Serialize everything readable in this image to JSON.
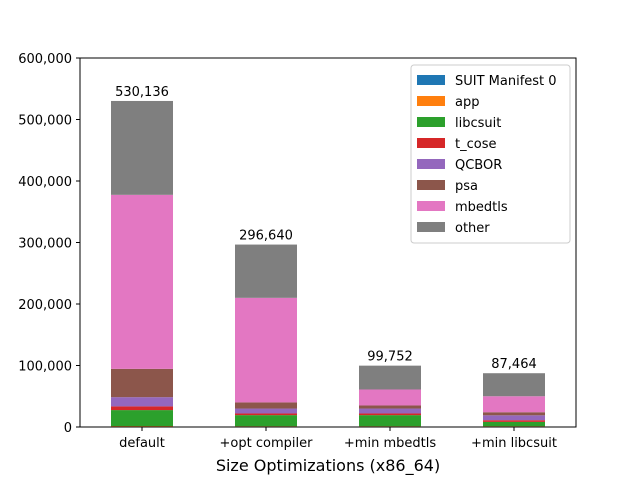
{
  "chart_data": {
    "type": "bar",
    "stacked": true,
    "title": "",
    "xlabel": "Size Optimizations (x86_64)",
    "ylabel": "",
    "ylim": [
      0,
      600000
    ],
    "yticks": [
      0,
      100000,
      200000,
      300000,
      400000,
      500000,
      600000
    ],
    "ytick_labels": [
      "0",
      "100,000",
      "200,000",
      "300,000",
      "400,000",
      "500,000",
      "600,000"
    ],
    "categories": [
      "default",
      "+opt compiler",
      "+min mbedtls",
      "+min libcsuit"
    ],
    "totals": [
      530136,
      296640,
      99752,
      87464
    ],
    "total_labels": [
      "530,136",
      "296,640",
      "99,752",
      "87,464"
    ],
    "legend_position": "top-right",
    "grid": false,
    "series": [
      {
        "name": "SUIT Manifest 0",
        "color": "#1f77b4",
        "values": [
          500,
          500,
          500,
          500
        ]
      },
      {
        "name": "app",
        "color": "#ff7f0e",
        "values": [
          1000,
          800,
          800,
          800
        ]
      },
      {
        "name": "libcsuit",
        "color": "#2ca02c",
        "values": [
          26000,
          18000,
          18000,
          7000
        ]
      },
      {
        "name": "t_cose",
        "color": "#d62728",
        "values": [
          6000,
          2700,
          2700,
          2700
        ]
      },
      {
        "name": "QCBOR",
        "color": "#9467bd",
        "values": [
          15000,
          8000,
          8000,
          8000
        ]
      },
      {
        "name": "psa",
        "color": "#8c564b",
        "values": [
          46000,
          10000,
          5000,
          5000
        ]
      },
      {
        "name": "mbedtls",
        "color": "#e377c2",
        "values": [
          283000,
          170000,
          26000,
          26000
        ]
      },
      {
        "name": "other",
        "color": "#7f7f7f",
        "values": [
          152636,
          86640,
          38752,
          37464
        ]
      }
    ]
  }
}
